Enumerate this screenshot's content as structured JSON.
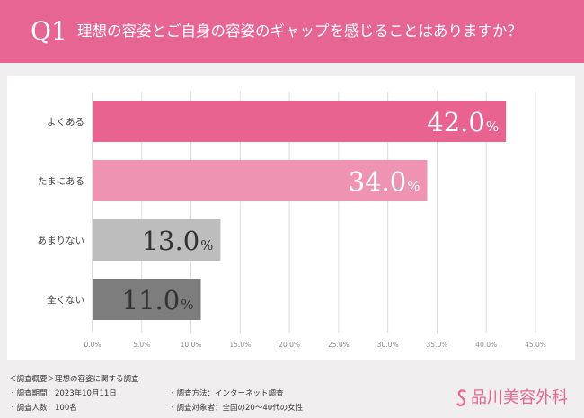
{
  "header": {
    "badge": "Q1",
    "title": "理想の容姿とご自身の容姿のギャップを感じることはありますか？"
  },
  "chart_data": {
    "type": "bar",
    "orientation": "horizontal",
    "title": "理想の容姿とご自身の容姿のギャップを感じることはありますか？",
    "categories": [
      "よくある",
      "たまにある",
      "あまりない",
      "全くない"
    ],
    "values": [
      42.0,
      34.0,
      13.0,
      11.0
    ],
    "value_labels": [
      "42.0",
      "34.0",
      "13.0",
      "11.0"
    ],
    "unit": "%",
    "colors": [
      "#e8638f",
      "#ef93b3",
      "#bdbdbd",
      "#7d7d7d"
    ],
    "xlim": [
      0,
      45
    ],
    "xticks": [
      "0.0%",
      "5.0%",
      "10.0%",
      "15.0%",
      "20.0%",
      "25.0%",
      "30.0%",
      "35.0%",
      "40.0%",
      "45.0%"
    ],
    "grid": true,
    "legend": "none"
  },
  "footer": {
    "summary": "＜調査概要＞理想の容姿に関する調査",
    "period": "・調査期間：2023年10月11日",
    "method": "・調査方法：インターネット調査",
    "count": "・調査人数：100名",
    "target": "・調査対象者：全国の20〜40代の女性",
    "brand": "品川美容外科"
  },
  "colors": {
    "accent": "#e66592",
    "background": "#f0eeee",
    "panel": "#ffffff"
  }
}
